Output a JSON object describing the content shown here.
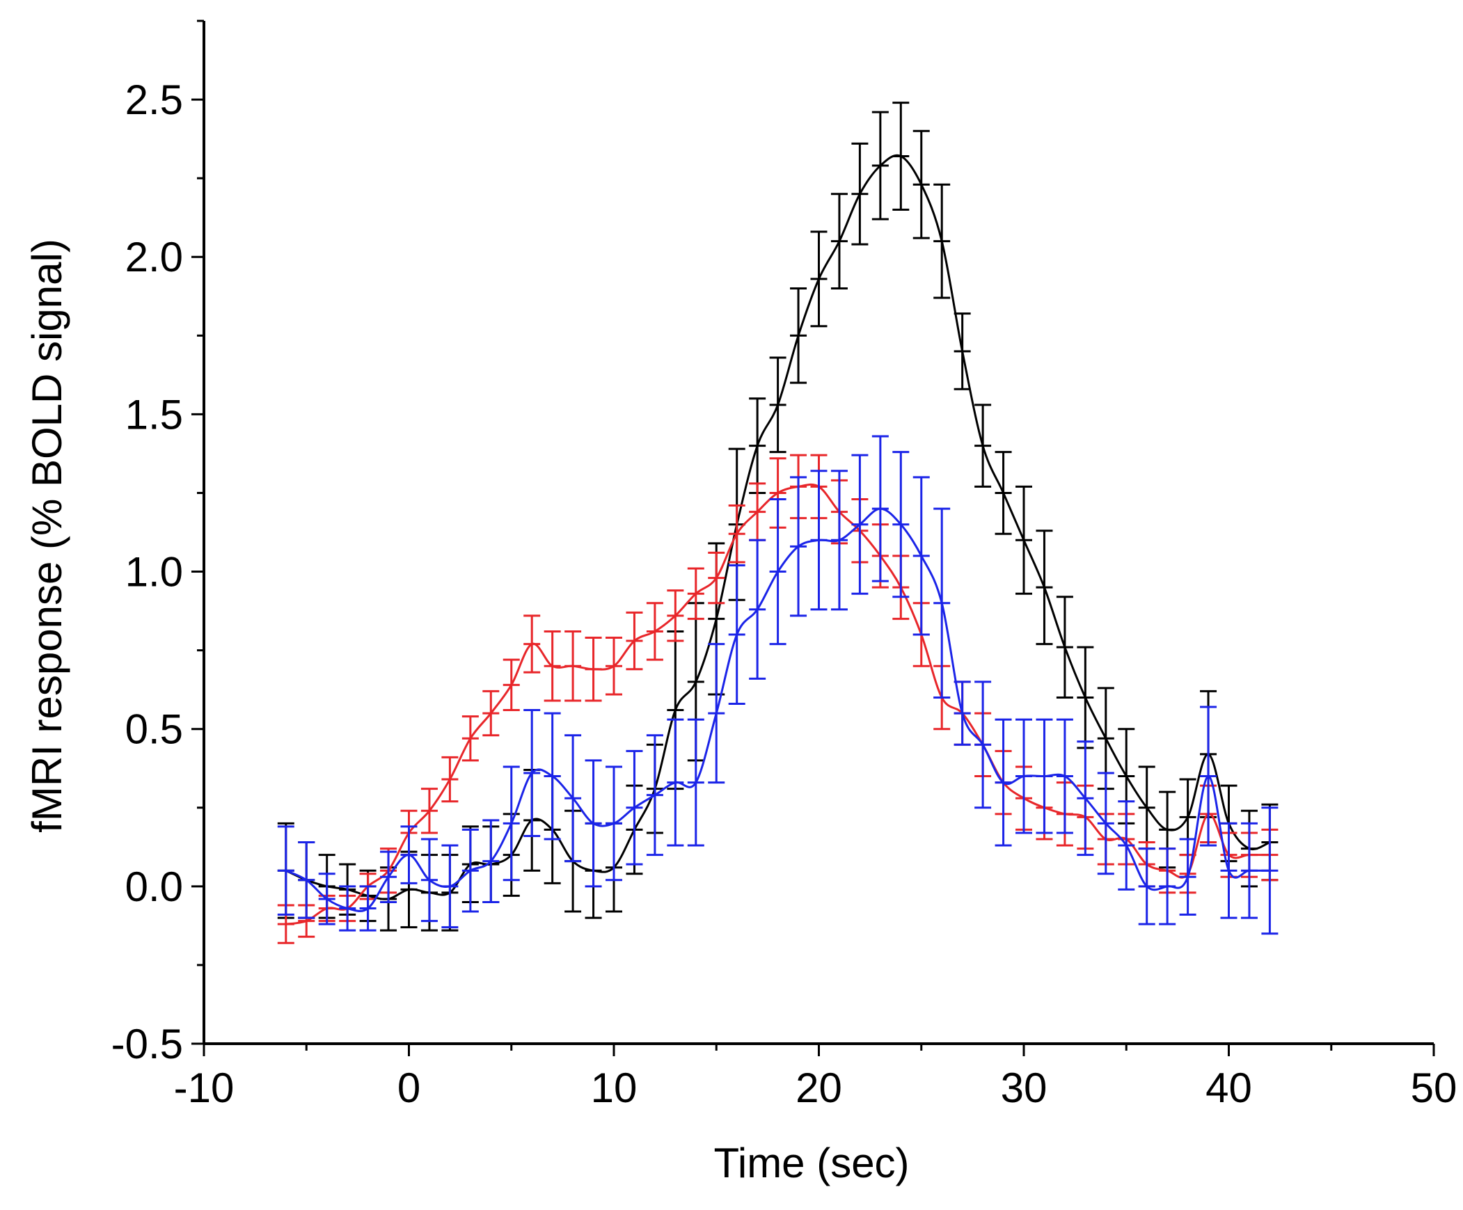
{
  "chart_data": {
    "type": "line",
    "title": "",
    "xlabel": "Time (sec)",
    "ylabel": "fMRI response (% BOLD signal)",
    "xlim": [
      -10,
      50
    ],
    "ylim": [
      -0.5,
      2.75
    ],
    "xticks": [
      -10,
      0,
      10,
      20,
      30,
      40,
      50
    ],
    "xtick_labels": [
      "-10",
      "0",
      "10",
      "20",
      "30",
      "40",
      "50"
    ],
    "yticks": [
      -0.5,
      0.0,
      0.5,
      1.0,
      1.5,
      2.0,
      2.5
    ],
    "ytick_labels": [
      "-0.5",
      "0.0",
      "0.5",
      "1.0",
      "1.5",
      "2.0",
      "2.5"
    ],
    "x": [
      -6,
      -5,
      -4,
      -3,
      -2,
      -1,
      0,
      1,
      2,
      3,
      4,
      5,
      6,
      7,
      8,
      9,
      10,
      11,
      12,
      13,
      14,
      15,
      16,
      17,
      18,
      19,
      20,
      21,
      22,
      23,
      24,
      25,
      26,
      27,
      28,
      29,
      30,
      31,
      32,
      33,
      34,
      35,
      36,
      37,
      38,
      39,
      40,
      41,
      42
    ],
    "series": [
      {
        "name": "black",
        "color": "#000000",
        "values": [
          0.05,
          0.02,
          0.0,
          -0.01,
          -0.03,
          -0.04,
          -0.01,
          -0.02,
          -0.02,
          0.07,
          0.07,
          0.1,
          0.21,
          0.18,
          0.08,
          0.05,
          0.06,
          0.18,
          0.31,
          0.56,
          0.65,
          0.85,
          1.15,
          1.4,
          1.53,
          1.75,
          1.93,
          2.05,
          2.2,
          2.29,
          2.32,
          2.23,
          2.05,
          1.7,
          1.4,
          1.25,
          1.1,
          0.95,
          0.76,
          0.6,
          0.47,
          0.35,
          0.25,
          0.18,
          0.22,
          0.42,
          0.2,
          0.12,
          0.14
        ],
        "errors": [
          0.15,
          0.12,
          0.1,
          0.08,
          0.08,
          0.1,
          0.12,
          0.12,
          0.12,
          0.12,
          0.12,
          0.13,
          0.16,
          0.17,
          0.16,
          0.15,
          0.14,
          0.14,
          0.14,
          0.25,
          0.25,
          0.24,
          0.24,
          0.15,
          0.15,
          0.15,
          0.15,
          0.15,
          0.16,
          0.17,
          0.17,
          0.17,
          0.18,
          0.12,
          0.13,
          0.13,
          0.17,
          0.18,
          0.16,
          0.16,
          0.16,
          0.15,
          0.13,
          0.12,
          0.12,
          0.2,
          0.12,
          0.12,
          0.12
        ]
      },
      {
        "name": "red",
        "color": "#e8262a",
        "values": [
          -0.12,
          -0.11,
          -0.07,
          -0.07,
          0.0,
          0.05,
          0.17,
          0.24,
          0.34,
          0.47,
          0.55,
          0.64,
          0.77,
          0.7,
          0.7,
          0.69,
          0.7,
          0.78,
          0.81,
          0.86,
          0.93,
          0.98,
          1.12,
          1.19,
          1.25,
          1.27,
          1.27,
          1.19,
          1.13,
          1.05,
          0.95,
          0.8,
          0.6,
          0.55,
          0.45,
          0.33,
          0.28,
          0.25,
          0.23,
          0.22,
          0.15,
          0.15,
          0.07,
          0.05,
          0.04,
          0.23,
          0.1,
          0.1,
          0.1
        ],
        "errors": [
          0.06,
          0.05,
          0.04,
          0.04,
          0.04,
          0.07,
          0.07,
          0.07,
          0.07,
          0.07,
          0.07,
          0.08,
          0.09,
          0.11,
          0.11,
          0.1,
          0.09,
          0.09,
          0.09,
          0.08,
          0.08,
          0.08,
          0.09,
          0.09,
          0.11,
          0.1,
          0.1,
          0.1,
          0.1,
          0.1,
          0.1,
          0.1,
          0.1,
          0.1,
          0.1,
          0.1,
          0.1,
          0.1,
          0.1,
          0.1,
          0.08,
          0.08,
          0.07,
          0.07,
          0.06,
          0.09,
          0.07,
          0.07,
          0.08
        ]
      },
      {
        "name": "blue",
        "color": "#1b24e8",
        "values": [
          0.05,
          0.02,
          -0.04,
          -0.07,
          -0.07,
          0.03,
          0.1,
          0.02,
          0.0,
          0.05,
          0.08,
          0.2,
          0.36,
          0.35,
          0.28,
          0.2,
          0.2,
          0.25,
          0.29,
          0.33,
          0.33,
          0.55,
          0.8,
          0.88,
          1.0,
          1.08,
          1.1,
          1.1,
          1.15,
          1.2,
          1.15,
          1.05,
          0.9,
          0.55,
          0.45,
          0.33,
          0.35,
          0.35,
          0.35,
          0.28,
          0.2,
          0.13,
          0.0,
          0.0,
          0.03,
          0.35,
          0.05,
          0.05,
          0.05
        ],
        "errors": [
          0.14,
          0.12,
          0.08,
          0.07,
          0.07,
          0.08,
          0.09,
          0.13,
          0.13,
          0.13,
          0.13,
          0.18,
          0.2,
          0.2,
          0.2,
          0.2,
          0.18,
          0.18,
          0.19,
          0.2,
          0.2,
          0.22,
          0.22,
          0.22,
          0.23,
          0.22,
          0.22,
          0.22,
          0.22,
          0.23,
          0.23,
          0.25,
          0.3,
          0.1,
          0.2,
          0.2,
          0.18,
          0.18,
          0.18,
          0.18,
          0.16,
          0.14,
          0.12,
          0.12,
          0.12,
          0.22,
          0.15,
          0.15,
          0.2
        ]
      }
    ]
  }
}
